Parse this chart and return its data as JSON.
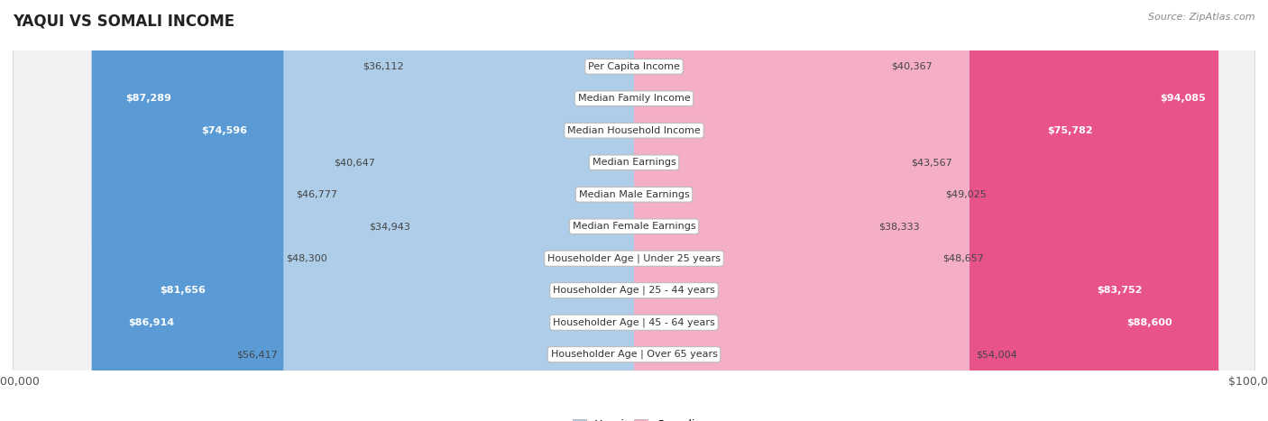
{
  "title": "YAQUI VS SOMALI INCOME",
  "source": "Source: ZipAtlas.com",
  "categories": [
    "Per Capita Income",
    "Median Family Income",
    "Median Household Income",
    "Median Earnings",
    "Median Male Earnings",
    "Median Female Earnings",
    "Householder Age | Under 25 years",
    "Householder Age | 25 - 44 years",
    "Householder Age | 45 - 64 years",
    "Householder Age | Over 65 years"
  ],
  "yaqui_values": [
    36112,
    87289,
    74596,
    40647,
    46777,
    34943,
    48300,
    81656,
    86914,
    56417
  ],
  "somali_values": [
    40367,
    94085,
    75782,
    43567,
    49025,
    38333,
    48657,
    83752,
    88600,
    54004
  ],
  "yaqui_labels": [
    "$36,112",
    "$87,289",
    "$74,596",
    "$40,647",
    "$46,777",
    "$34,943",
    "$48,300",
    "$81,656",
    "$86,914",
    "$56,417"
  ],
  "somali_labels": [
    "$40,367",
    "$94,085",
    "$75,782",
    "$43,567",
    "$49,025",
    "$38,333",
    "$48,657",
    "$83,752",
    "$88,600",
    "$54,004"
  ],
  "max_val": 100000,
  "yaqui_color_light": "#aecde8",
  "yaqui_color_dark": "#5b9bd5",
  "somali_color_light": "#f4aec8",
  "somali_color_dark": "#e8538a",
  "row_bg_color": "#f2f2f2",
  "row_border_color": "#cccccc",
  "label_fontsize": 8.5,
  "title_fontsize": 12,
  "threshold_dark": 60000,
  "bar_height": 0.6
}
